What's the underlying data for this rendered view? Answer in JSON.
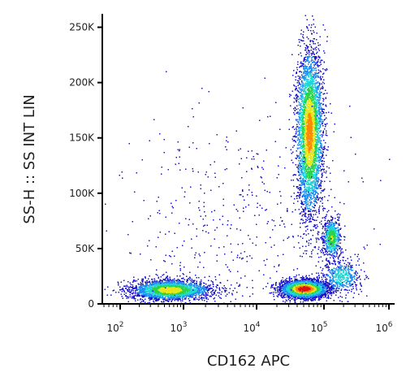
{
  "chart_data": {
    "type": "scatter",
    "subtype": "flow-cytometry-density-dot-plot",
    "xlabel": "CD162 APC",
    "ylabel": "SS-H :: SS INT LIN",
    "x_scale": "biexponential",
    "y_scale": "linear",
    "xlim": [
      60,
      1200000
    ],
    "ylim": [
      0,
      262144
    ],
    "x_ticks": [
      {
        "value": 100,
        "base": "10",
        "exp": "2"
      },
      {
        "value": 1000,
        "base": "10",
        "exp": "3"
      },
      {
        "value": 10000,
        "base": "10",
        "exp": "4"
      },
      {
        "value": 100000,
        "base": "10",
        "exp": "5"
      },
      {
        "value": 1000000,
        "base": "10",
        "exp": "6"
      }
    ],
    "y_ticks": [
      {
        "value": 0,
        "label": "0"
      },
      {
        "value": 50000,
        "label": "50K"
      },
      {
        "value": 100000,
        "label": "100K"
      },
      {
        "value": 150000,
        "label": "150K"
      },
      {
        "value": 200000,
        "label": "200K"
      },
      {
        "value": 250000,
        "label": "250K"
      }
    ],
    "grid": false,
    "legend": "none",
    "colormap": [
      "#1f18c8",
      "#1e8ef0",
      "#23d6d6",
      "#2bd34a",
      "#e6e61a",
      "#ff8a00",
      "#e01010"
    ],
    "populations": [
      {
        "center_x": 600,
        "center_y": 13000,
        "sd_log10_x": 0.3,
        "sd_y": 4500,
        "approx_events": 2600,
        "density_peak": 0.7
      },
      {
        "center_x": 50000,
        "center_y": 14000,
        "sd_log10_x": 0.17,
        "sd_y": 4000,
        "approx_events": 3400,
        "density_peak": 1.0
      },
      {
        "center_x": 60000,
        "center_y": 155000,
        "sd_log10_x": 0.1,
        "sd_y": 38000,
        "approx_events": 3800,
        "density_peak": 0.8
      },
      {
        "center_x": 130000,
        "center_y": 60000,
        "sd_log10_x": 0.07,
        "sd_y": 9000,
        "approx_events": 700,
        "density_peak": 0.6
      },
      {
        "center_x": 180000,
        "center_y": 25000,
        "sd_log10_x": 0.15,
        "sd_y": 8000,
        "approx_events": 500,
        "density_peak": 0.4
      },
      {
        "center_x": 5000,
        "center_y": 60000,
        "sd_log10_x": 0.9,
        "sd_y": 60000,
        "approx_events": 550,
        "density_peak": 0.1
      }
    ]
  }
}
